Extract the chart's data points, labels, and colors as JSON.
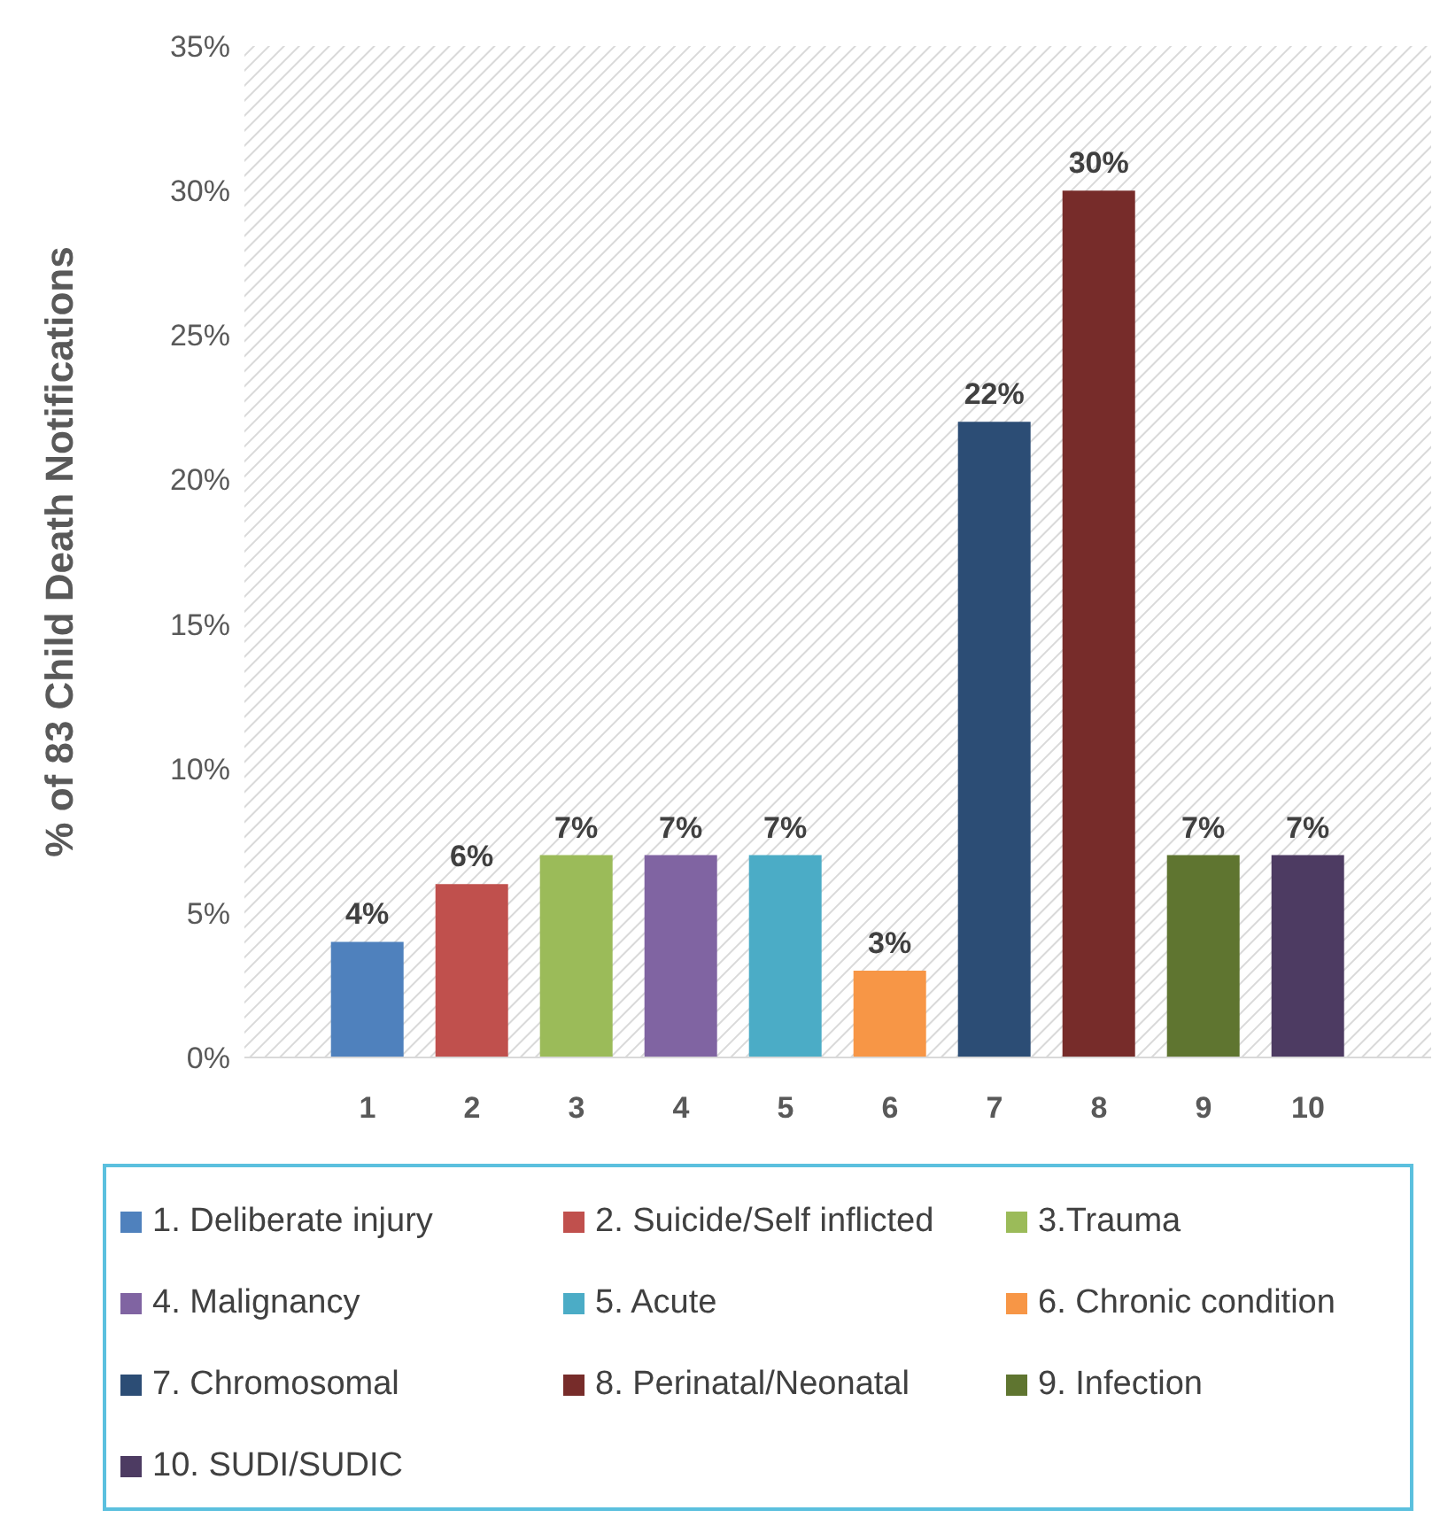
{
  "chart_data": {
    "type": "bar",
    "ylabel": "% of 83 Child Death Notifications",
    "categories": [
      "1",
      "2",
      "3",
      "4",
      "5",
      "6",
      "7",
      "8",
      "9",
      "10"
    ],
    "stacked": true,
    "ylim": [
      0,
      35
    ],
    "yticks": [
      {
        "value": 0,
        "label": "0%"
      },
      {
        "value": 5,
        "label": "5%"
      },
      {
        "value": 10,
        "label": "10%"
      },
      {
        "value": 15,
        "label": "15%"
      },
      {
        "value": 20,
        "label": "20%"
      },
      {
        "value": 25,
        "label": "25%"
      },
      {
        "value": 30,
        "label": "30%"
      },
      {
        "value": 35,
        "label": "35%"
      }
    ],
    "grid": false,
    "legend": "bottom",
    "series": [
      {
        "name": "1. Deliberate injury",
        "color": "#4f81bd",
        "values": [
          4,
          null,
          null,
          null,
          null,
          null,
          null,
          null,
          null,
          null
        ],
        "value_labels": [
          "4%",
          null,
          null,
          null,
          null,
          null,
          null,
          null,
          null,
          null
        ]
      },
      {
        "name": "2. Suicide/Self inflicted",
        "color": "#c0504d",
        "values": [
          null,
          6,
          null,
          null,
          null,
          null,
          null,
          null,
          null,
          null
        ],
        "value_labels": [
          null,
          "6%",
          null,
          null,
          null,
          null,
          null,
          null,
          null,
          null
        ]
      },
      {
        "name": "3.Trauma",
        "color": "#9bbb59",
        "values": [
          null,
          null,
          7,
          null,
          null,
          null,
          null,
          null,
          null,
          null
        ],
        "value_labels": [
          null,
          null,
          "7%",
          null,
          null,
          null,
          null,
          null,
          null,
          null
        ]
      },
      {
        "name": "4. Malignancy",
        "color": "#8064a2",
        "values": [
          null,
          null,
          null,
          7,
          null,
          null,
          null,
          null,
          null,
          null
        ],
        "value_labels": [
          null,
          null,
          null,
          "7%",
          null,
          null,
          null,
          null,
          null,
          null
        ]
      },
      {
        "name": "5. Acute",
        "color": "#4bacc6",
        "values": [
          null,
          null,
          null,
          null,
          7,
          null,
          null,
          null,
          null,
          null
        ],
        "value_labels": [
          null,
          null,
          null,
          null,
          "7%",
          null,
          null,
          null,
          null,
          null
        ]
      },
      {
        "name": "6. Chronic condition",
        "color": "#f79646",
        "values": [
          null,
          null,
          null,
          null,
          null,
          3,
          null,
          null,
          null,
          null
        ],
        "value_labels": [
          null,
          null,
          null,
          null,
          null,
          "3%",
          null,
          null,
          null,
          null
        ]
      },
      {
        "name": "7. Chromosomal",
        "color": "#2c4d75",
        "values": [
          null,
          null,
          null,
          null,
          null,
          null,
          22,
          null,
          null,
          null
        ],
        "value_labels": [
          null,
          null,
          null,
          null,
          null,
          null,
          "22%",
          null,
          null,
          null
        ]
      },
      {
        "name": "8. Perinatal/Neonatal",
        "color": "#772c2a",
        "values": [
          null,
          null,
          null,
          null,
          null,
          null,
          null,
          30,
          null,
          null
        ],
        "value_labels": [
          null,
          null,
          null,
          null,
          null,
          null,
          null,
          "30%",
          null,
          null
        ]
      },
      {
        "name": "9. Infection",
        "color": "#5f7530",
        "values": [
          null,
          null,
          null,
          null,
          null,
          null,
          null,
          null,
          7,
          null
        ],
        "value_labels": [
          null,
          null,
          null,
          null,
          null,
          null,
          null,
          null,
          "7%",
          null
        ]
      },
      {
        "name": "10. SUDI/SUDIC",
        "color": "#4d3b62",
        "values": [
          null,
          null,
          null,
          null,
          null,
          null,
          null,
          null,
          null,
          7
        ],
        "value_labels": [
          null,
          null,
          null,
          null,
          null,
          null,
          null,
          null,
          null,
          "7%"
        ]
      }
    ]
  }
}
